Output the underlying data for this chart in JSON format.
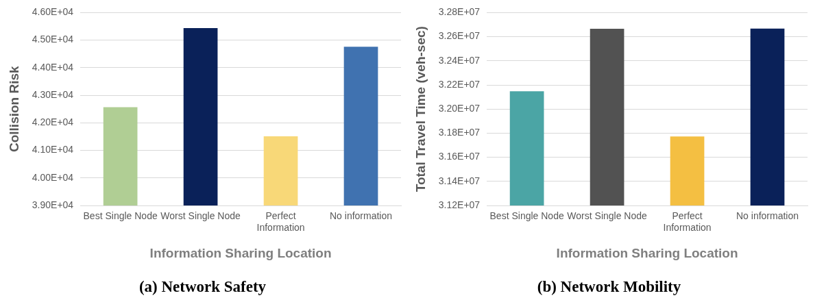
{
  "chart_data": [
    {
      "type": "bar",
      "title": "(a) Network Safety",
      "xlabel": "Information Sharing Location",
      "ylabel": "Collision Risk",
      "categories": [
        "Best Single Node",
        "Worst Single Node",
        "Perfect Information",
        "No information"
      ],
      "values": [
        42570,
        45440,
        41510,
        44760
      ],
      "colors": [
        "#b0ce94",
        "#0a2159",
        "#f8d878",
        "#4072b0"
      ],
      "ylim": [
        39000,
        46000
      ],
      "yticks": [
        {
          "value": 39000,
          "label": "3.90E+04"
        },
        {
          "value": 40000,
          "label": "4.00E+04"
        },
        {
          "value": 41000,
          "label": "4.10E+04"
        },
        {
          "value": 42000,
          "label": "4.20E+04"
        },
        {
          "value": 43000,
          "label": "4.30E+04"
        },
        {
          "value": 44000,
          "label": "4.40E+04"
        },
        {
          "value": 45000,
          "label": "4.50E+04"
        },
        {
          "value": 46000,
          "label": "4.60E+04"
        }
      ],
      "grid": "y"
    },
    {
      "type": "bar",
      "title": "(b) Network Mobility",
      "xlabel": "Information Sharing Location",
      "ylabel": "Total Travel Time (veh-sec)",
      "categories": [
        "Best Single Node",
        "Worst Single Node",
        "Perfect Information",
        "No information"
      ],
      "values": [
        32147000,
        32666000,
        31772000,
        32668000
      ],
      "colors": [
        "#4ba5a5",
        "#525252",
        "#f4bf42",
        "#0a2159"
      ],
      "ylim": [
        31200000,
        32800000
      ],
      "yticks": [
        {
          "value": 31200000,
          "label": "3.12E+07"
        },
        {
          "value": 31400000,
          "label": "3.14E+07"
        },
        {
          "value": 31600000,
          "label": "3.16E+07"
        },
        {
          "value": 31800000,
          "label": "3.18E+07"
        },
        {
          "value": 32000000,
          "label": "3.20E+07"
        },
        {
          "value": 32200000,
          "label": "3.22E+07"
        },
        {
          "value": 32400000,
          "label": "3.24E+07"
        },
        {
          "value": 32600000,
          "label": "3.26E+07"
        },
        {
          "value": 32800000,
          "label": "3.28E+07"
        }
      ],
      "grid": "y"
    }
  ]
}
